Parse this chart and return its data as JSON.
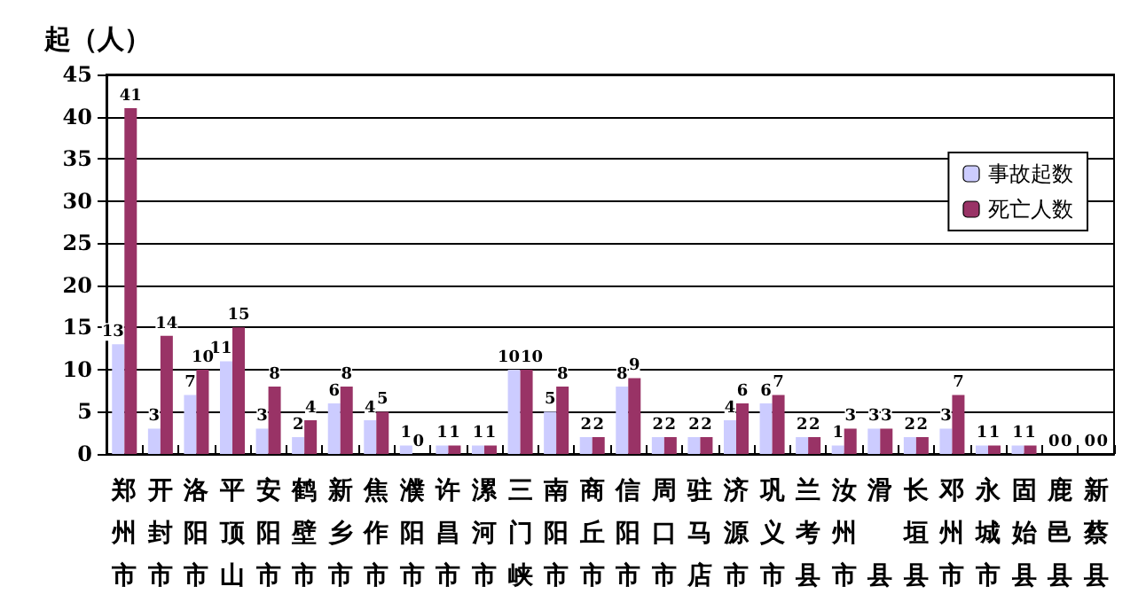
{
  "chart_data": {
    "type": "bar",
    "ylabel": "起（人）",
    "categories": [
      "郑州市",
      "开封市",
      "洛阳市",
      "平顶山",
      "安阳市",
      "鹤壁市",
      "新乡市",
      "焦作市",
      "濮阳市",
      "许昌市",
      "漯河市",
      "三门峡",
      "南阳市",
      "商丘市",
      "信阳市",
      "周口市",
      "驻马店",
      "济源市",
      "巩义市",
      "兰考县",
      "汝州市",
      "滑县",
      "长垣县",
      "邓州市",
      "永城市",
      "固始县",
      "鹿邑县",
      "新蔡县"
    ],
    "series": [
      {
        "name": "事故起数",
        "color": "#ccccff",
        "values": [
          13,
          3,
          7,
          11,
          3,
          2,
          6,
          4,
          1,
          1,
          1,
          10,
          5,
          2,
          8,
          2,
          2,
          4,
          6,
          2,
          1,
          3,
          2,
          3,
          1,
          1,
          0,
          0
        ]
      },
      {
        "name": "死亡人数",
        "color": "#993366",
        "values": [
          41,
          14,
          10,
          15,
          8,
          4,
          8,
          5,
          0,
          1,
          1,
          10,
          8,
          2,
          9,
          2,
          2,
          6,
          7,
          2,
          3,
          3,
          2,
          7,
          1,
          1,
          0,
          0
        ]
      }
    ],
    "ylim": [
      0,
      45
    ],
    "yticks": [
      0,
      5,
      10,
      15,
      20,
      25,
      30,
      35,
      40,
      45
    ],
    "grid": "y",
    "legend": "top right",
    "data_labels": true
  }
}
